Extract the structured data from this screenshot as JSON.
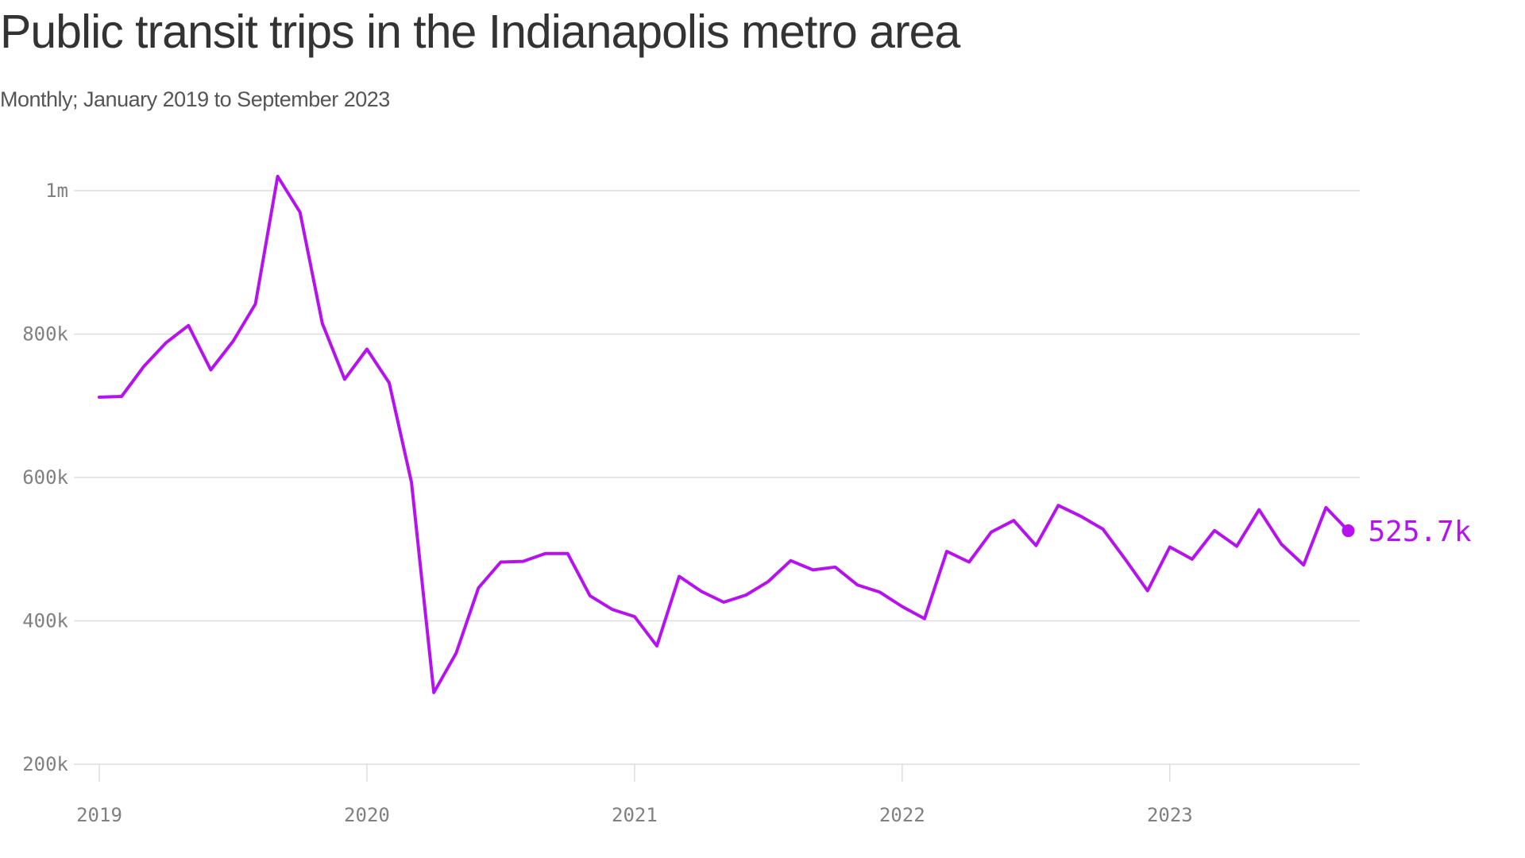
{
  "title": "Public transit trips in the Indianapolis metro area",
  "subtitle": "Monthly; January 2019 to September 2023",
  "colors": {
    "line": "#b612f0",
    "grid": "#dddddd",
    "axis_text": "#808080"
  },
  "chart_data": {
    "type": "line",
    "title": "Public transit trips in the Indianapolis metro area",
    "subtitle": "Monthly; January 2019 to September 2023",
    "xlabel": "",
    "ylabel": "",
    "x_ticks": [
      "2019",
      "2020",
      "2021",
      "2022",
      "2023"
    ],
    "y_ticks": [
      {
        "value": 200000,
        "label": "200k"
      },
      {
        "value": 400000,
        "label": "400k"
      },
      {
        "value": 600000,
        "label": "600k"
      },
      {
        "value": 800000,
        "label": "800k"
      },
      {
        "value": 1000000,
        "label": "1m"
      }
    ],
    "ylim": [
      200000,
      1000000
    ],
    "grid": true,
    "end_label": "525.7k",
    "series": [
      {
        "x_start": "2019-01",
        "x_end": "2023-09",
        "frequency": "monthly",
        "values": [
          712000,
          713000,
          755000,
          788000,
          812000,
          750000,
          790000,
          842000,
          1020000,
          970000,
          815000,
          737000,
          779000,
          732000,
          593000,
          300000,
          355000,
          446000,
          482000,
          483000,
          494000,
          494000,
          435000,
          416000,
          406000,
          365000,
          462000,
          441000,
          426000,
          436000,
          455000,
          484000,
          471000,
          475000,
          450000,
          440000,
          420000,
          403000,
          497000,
          482000,
          524000,
          540000,
          505000,
          561000,
          546000,
          528000,
          486000,
          442000,
          503000,
          486000,
          526000,
          504000,
          555000,
          507000,
          478000,
          558000,
          525700
        ]
      }
    ]
  }
}
